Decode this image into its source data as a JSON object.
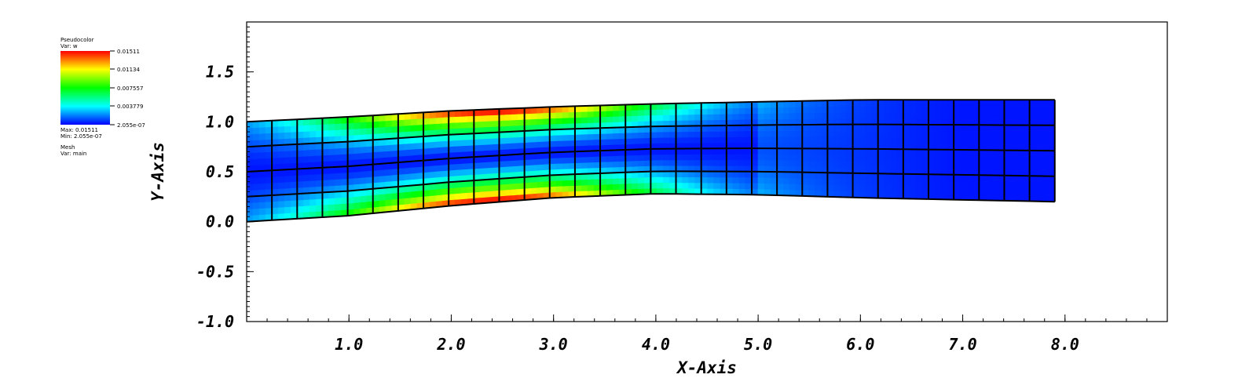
{
  "legend": {
    "pseudocolor": {
      "title": "Pseudocolor",
      "var_label": "Var: w",
      "ticks": [
        "0.01511",
        "0.01134",
        "0.007557",
        "0.003779",
        "2.055e-07"
      ],
      "max_label": "Max: 0.01511",
      "min_label": "Min: 2.055e-07",
      "colormap": [
        "#0000ff",
        "#00ffff",
        "#00ff00",
        "#ffff00",
        "#ff0000"
      ]
    },
    "mesh": {
      "title": "Mesh",
      "var_label": "Var: main"
    }
  },
  "chart_data": {
    "type": "heatmap",
    "title": "",
    "xlabel": "X-Axis",
    "ylabel": "Y-Axis",
    "xlim": [
      0,
      9.0
    ],
    "ylim": [
      -1.0,
      2.0
    ],
    "x_ticks": [
      "1.0",
      "2.0",
      "3.0",
      "4.0",
      "5.0",
      "6.0",
      "7.0",
      "8.0"
    ],
    "y_ticks": [
      "-1.0",
      "-0.5",
      "0.0",
      "0.5",
      "1.0",
      "1.5"
    ],
    "x_tick_values": [
      1,
      2,
      3,
      4,
      5,
      6,
      7,
      8
    ],
    "y_tick_values": [
      -1.0,
      -0.5,
      0.0,
      0.5,
      1.0,
      1.5
    ],
    "variable": "w",
    "value_range": [
      2.055e-07,
      0.01511
    ],
    "mesh": {
      "columns": 32,
      "rows": 4,
      "x_extent": [
        0,
        7.9
      ],
      "bottom_edge": [
        [
          0,
          0.0
        ],
        [
          1,
          0.06
        ],
        [
          2,
          0.16
        ],
        [
          3,
          0.24
        ],
        [
          4,
          0.28
        ],
        [
          5,
          0.27
        ],
        [
          6,
          0.24
        ],
        [
          7.9,
          0.2
        ]
      ],
      "top_edge": [
        [
          0,
          1.0
        ],
        [
          1,
          1.05
        ],
        [
          2,
          1.11
        ],
        [
          3,
          1.15
        ],
        [
          4,
          1.18
        ],
        [
          5,
          1.2
        ],
        [
          6,
          1.22
        ],
        [
          7.9,
          1.22
        ]
      ],
      "max_w_near_x": 2.4
    }
  }
}
